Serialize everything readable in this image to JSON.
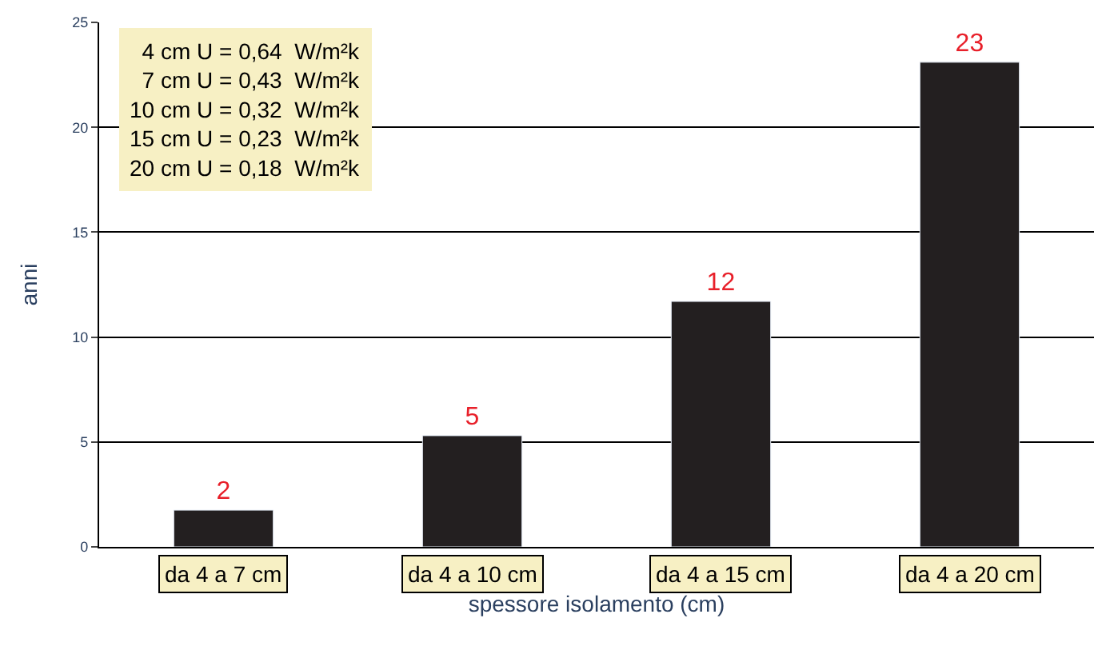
{
  "chart_data": {
    "type": "bar",
    "xlabel": "spessore isolamento (cm)",
    "ylabel": "anni",
    "categories": [
      "da 4 a 7 cm",
      "da 4 a 10 cm",
      "da 4 a 15 cm",
      "da 4 a 20 cm"
    ],
    "values": [
      1.75,
      5.3,
      11.7,
      23.1
    ],
    "color": "#231f20",
    "value_labels": [
      "2",
      "5",
      "12",
      "23"
    ],
    "ylim": [
      0,
      25
    ],
    "yticks": [
      0,
      5,
      10,
      15,
      20,
      25
    ],
    "grid": "y",
    "legend": false,
    "annotations": [
      "4 cm U = 0,64  W/m²k",
      "7 cm U = 0,43  W/m²k",
      "10 cm U = 0,32  W/m²k",
      "15 cm U = 0,23  W/m²k",
      "20 cm U = 0,18  W/m²k"
    ]
  }
}
